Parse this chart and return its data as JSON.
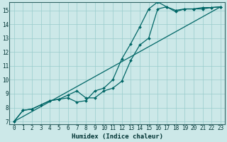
{
  "xlabel": "Humidex (Indice chaleur)",
  "background_color": "#cce8e8",
  "grid_color": "#99cccc",
  "line_color": "#006666",
  "line1_x": [
    0,
    1,
    2,
    3,
    4,
    5,
    6,
    7,
    8,
    9,
    10,
    11,
    12,
    13,
    14,
    15,
    16,
    17,
    18,
    19,
    20,
    21,
    22,
    23
  ],
  "line1_y": [
    7.0,
    7.8,
    7.9,
    8.2,
    8.5,
    8.6,
    8.9,
    9.2,
    8.7,
    8.7,
    9.2,
    9.4,
    9.9,
    11.4,
    12.5,
    13.0,
    15.1,
    15.25,
    15.0,
    15.1,
    15.1,
    15.1,
    15.2,
    15.25
  ],
  "line2_x": [
    0,
    1,
    2,
    3,
    4,
    5,
    6,
    7,
    8,
    9,
    10,
    11,
    12,
    13,
    14,
    15,
    16,
    17,
    18,
    19,
    20,
    21,
    22,
    23
  ],
  "line2_y": [
    7.0,
    7.8,
    7.9,
    8.2,
    8.5,
    8.6,
    8.7,
    8.4,
    8.5,
    9.2,
    9.4,
    10.0,
    11.5,
    12.6,
    13.8,
    15.1,
    15.6,
    15.25,
    14.9,
    15.1,
    15.1,
    15.2,
    15.2,
    15.25
  ],
  "line3_x": [
    0,
    23
  ],
  "line3_y": [
    7.0,
    15.25
  ],
  "xlim": [
    -0.5,
    23.5
  ],
  "ylim": [
    6.8,
    15.6
  ],
  "xticks": [
    0,
    1,
    2,
    3,
    4,
    5,
    6,
    7,
    8,
    9,
    10,
    11,
    12,
    13,
    14,
    15,
    16,
    17,
    18,
    19,
    20,
    21,
    22,
    23
  ],
  "yticks": [
    7,
    8,
    9,
    10,
    11,
    12,
    13,
    14,
    15
  ]
}
